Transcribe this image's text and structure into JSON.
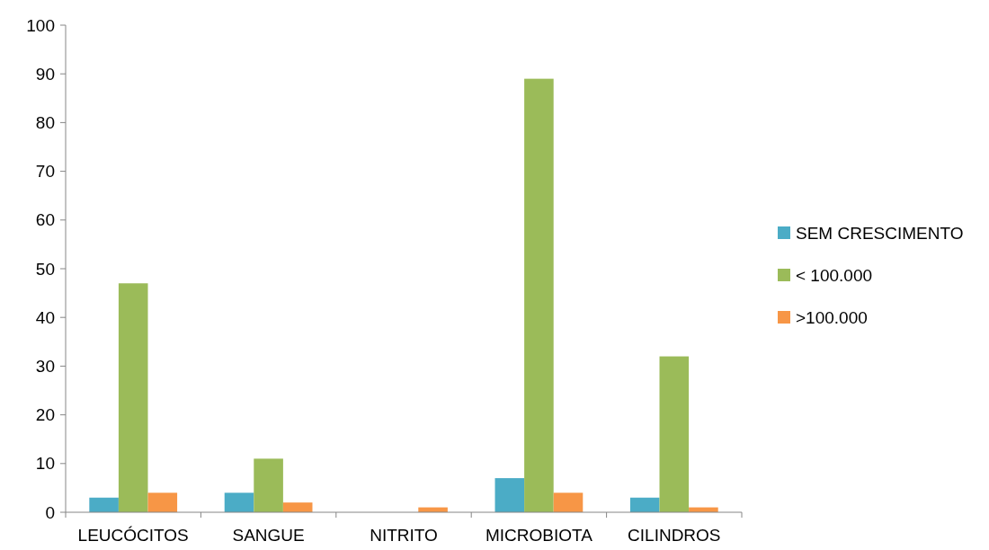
{
  "chart_data": {
    "type": "bar",
    "categories": [
      "LEUCÓCITOS",
      "SANGUE",
      "NITRITO",
      "MICROBIOTA",
      "CILINDROS"
    ],
    "series": [
      {
        "name": "SEM CRESCIMENTO",
        "color": "#4bacc6",
        "values": [
          3,
          4,
          0,
          7,
          3
        ]
      },
      {
        "name": "< 100.000",
        "color": "#9bbb59",
        "values": [
          47,
          11,
          0,
          89,
          32
        ]
      },
      {
        "name": ">100.000",
        "color": "#f79646",
        "values": [
          4,
          2,
          1,
          4,
          1
        ]
      }
    ],
    "ylim": [
      0,
      100
    ],
    "yticks": [
      0,
      10,
      20,
      30,
      40,
      50,
      60,
      70,
      80,
      90,
      100
    ],
    "grid": false,
    "legend": "right"
  }
}
